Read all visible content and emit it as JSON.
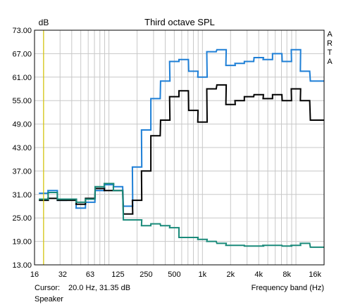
{
  "chart_data": {
    "type": "line",
    "title": "Third octave SPL",
    "ylabel": "dB",
    "xlabel": "Frequency band (Hz)",
    "side_label": "ARTA",
    "x_scale": "log",
    "xlim": [
      16,
      20000
    ],
    "ylim": [
      13,
      73
    ],
    "yticks": [
      13,
      19,
      25,
      31,
      37,
      43,
      49,
      55,
      61,
      67,
      73
    ],
    "ytick_labels": [
      "13.00",
      "19.00",
      "25.00",
      "31.00",
      "37.00",
      "43.00",
      "49.00",
      "55.00",
      "61.00",
      "67.00",
      "73.00"
    ],
    "xticks": [
      16,
      32,
      63,
      125,
      250,
      500,
      1000,
      2000,
      4000,
      8000,
      16000
    ],
    "xtick_labels": [
      "16",
      "32",
      "63",
      "125",
      "250",
      "500",
      "1k",
      "2k",
      "4k",
      "8k",
      "16k"
    ],
    "grid": true,
    "cursor_x": 20,
    "bands": [
      20,
      25,
      31.5,
      40,
      50,
      63,
      80,
      100,
      125,
      160,
      200,
      250,
      315,
      400,
      500,
      630,
      800,
      1000,
      1250,
      1600,
      2000,
      2500,
      3150,
      4000,
      5000,
      6300,
      8000,
      10000,
      12500,
      16000,
      20000
    ],
    "series": [
      {
        "color": "#1e7fd6",
        "values": [
          31.3,
          32.0,
          29.5,
          29.8,
          27.5,
          29.0,
          32.0,
          33.5,
          33.0,
          28.0,
          38.0,
          47.5,
          55.5,
          60.0,
          65.0,
          65.5,
          62.5,
          61.0,
          67.5,
          68.0,
          64.0,
          64.5,
          65.0,
          66.0,
          65.5,
          67.0,
          65.0,
          68.0,
          62.5,
          60.0,
          60.0
        ]
      },
      {
        "color": "#000000",
        "values": [
          29.5,
          30.0,
          29.5,
          29.5,
          28.5,
          30.0,
          32.5,
          32.0,
          32.0,
          26.0,
          29.5,
          37.0,
          46.0,
          50.0,
          56.0,
          57.5,
          52.5,
          49.5,
          58.0,
          59.0,
          54.0,
          55.0,
          56.0,
          56.5,
          55.5,
          56.5,
          55.0,
          58.0,
          55.0,
          50.0,
          50.0
        ]
      },
      {
        "color": "#1a8a7a",
        "values": [
          29.8,
          31.5,
          29.8,
          29.8,
          29.0,
          29.8,
          33.0,
          33.8,
          32.0,
          24.5,
          24.5,
          23.0,
          23.5,
          23.0,
          22.5,
          20.0,
          20.0,
          19.5,
          19.0,
          18.5,
          18.0,
          18.0,
          17.8,
          17.8,
          18.0,
          18.0,
          17.8,
          18.0,
          18.5,
          17.5,
          17.5
        ]
      }
    ]
  },
  "status": {
    "cursor_label": "Cursor:",
    "cursor_value": "20.0 Hz, 31.35 dB",
    "source_label": "Speaker"
  },
  "colors": {
    "cursor_line": "#d6c400",
    "grid": "#c8c8c8",
    "frame": "#000000"
  }
}
